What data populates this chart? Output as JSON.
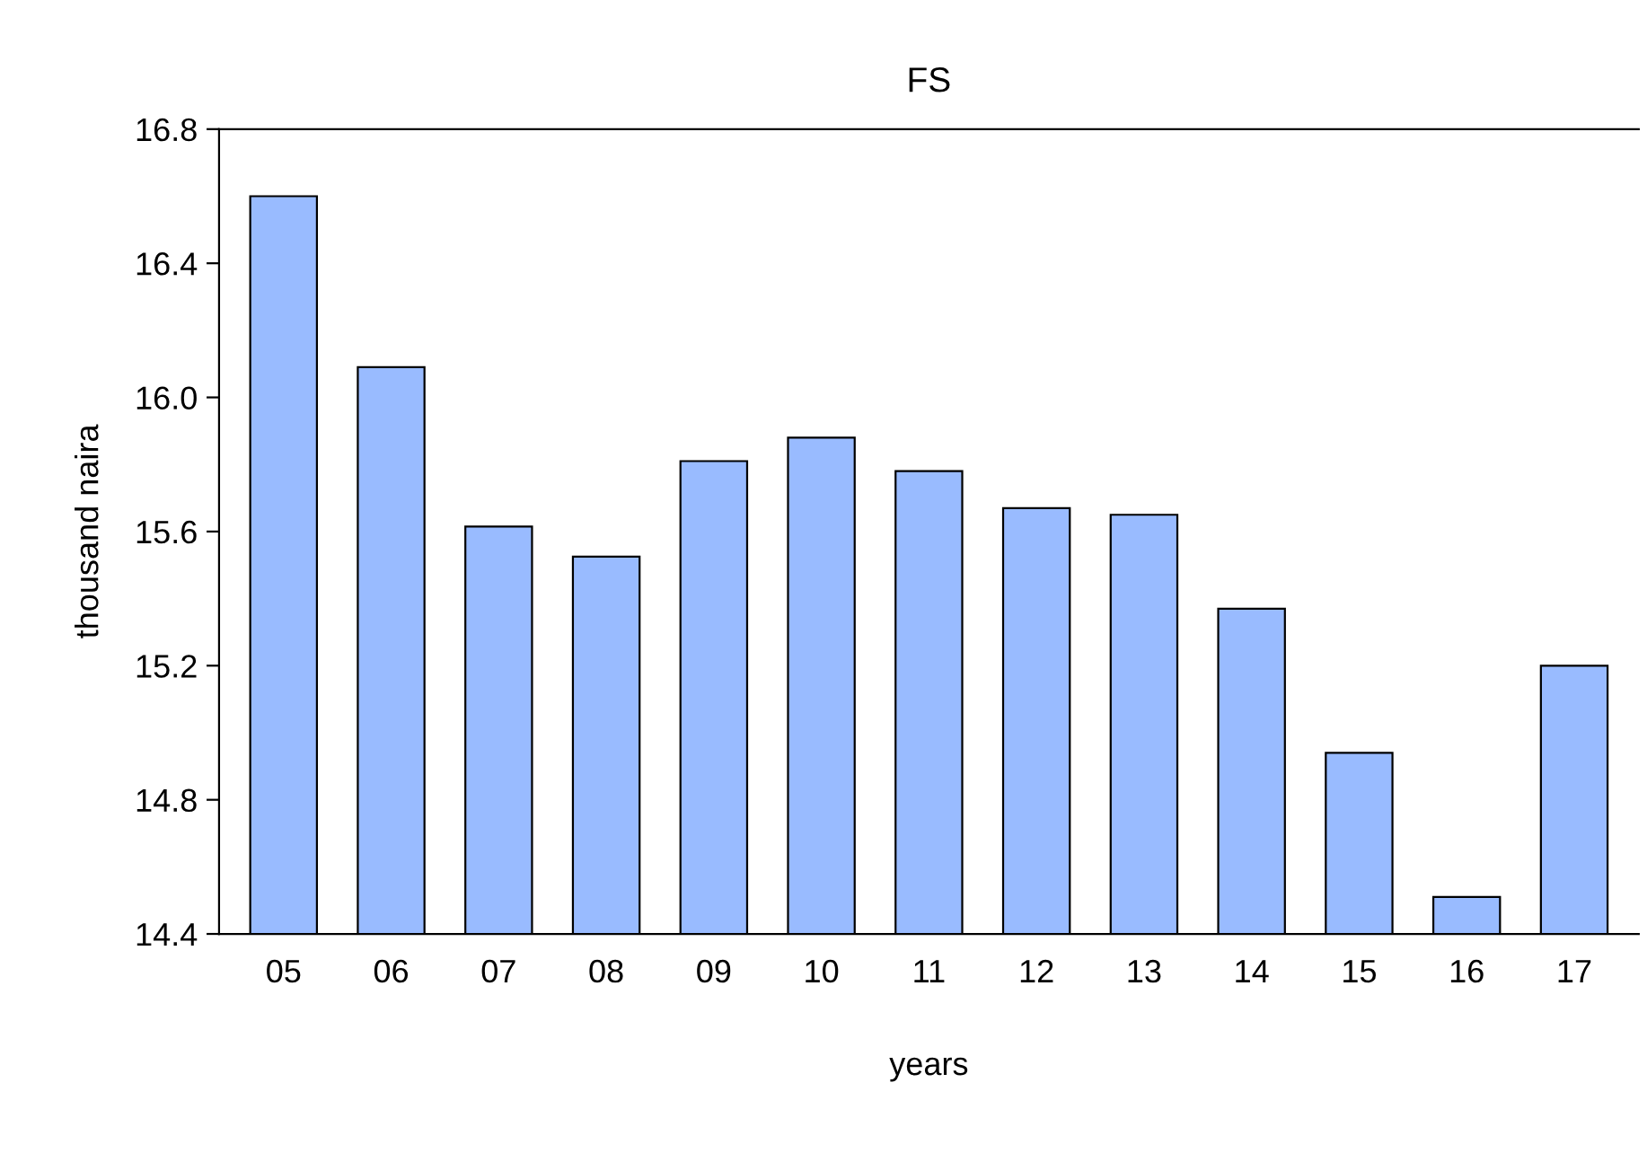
{
  "chart_data": {
    "type": "bar",
    "title": "FS",
    "xlabel": "years",
    "ylabel": "thousand naira",
    "categories": [
      "05",
      "06",
      "07",
      "08",
      "09",
      "10",
      "11",
      "12",
      "13",
      "14",
      "15",
      "16",
      "17"
    ],
    "values": [
      16.6,
      16.09,
      15.615,
      15.525,
      15.81,
      15.88,
      15.78,
      15.67,
      15.65,
      15.37,
      14.94,
      14.51,
      15.2
    ],
    "color": "#99bbff",
    "ylim": [
      14.4,
      16.8
    ],
    "yticks": [
      {
        "value": 14.4,
        "label": "14.4"
      },
      {
        "value": 14.8,
        "label": "14.8"
      },
      {
        "value": 15.2,
        "label": "15.2"
      },
      {
        "value": 15.6,
        "label": "15.6"
      },
      {
        "value": 16.0,
        "label": "16.0"
      },
      {
        "value": 16.4,
        "label": "16.4"
      },
      {
        "value": 16.8,
        "label": "16.8"
      }
    ],
    "grid": false
  }
}
